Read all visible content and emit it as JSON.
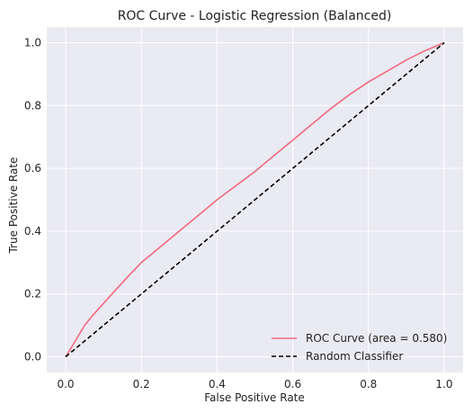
{
  "chart_data": {
    "type": "line",
    "title": "ROC Curve - Logistic Regression (Balanced)",
    "xlabel": "False Positive Rate",
    "ylabel": "True Positive Rate",
    "xlim": [
      -0.05,
      1.05
    ],
    "ylim": [
      -0.05,
      1.05
    ],
    "xticks": [
      "0.0",
      "0.2",
      "0.4",
      "0.6",
      "0.8",
      "1.0"
    ],
    "yticks": [
      "0.0",
      "0.2",
      "0.4",
      "0.6",
      "0.8",
      "1.0"
    ],
    "grid": true,
    "legend_position": "lower-right",
    "background_color": "#eaeaf2",
    "series": [
      {
        "name": "ROC Curve (area = 0.580)",
        "style": "solid",
        "color": "#f2697f",
        "x": [
          0.0,
          0.01,
          0.02,
          0.03,
          0.05,
          0.07,
          0.1,
          0.13,
          0.16,
          0.2,
          0.25,
          0.3,
          0.35,
          0.4,
          0.45,
          0.5,
          0.55,
          0.6,
          0.65,
          0.7,
          0.75,
          0.8,
          0.85,
          0.9,
          0.95,
          1.0
        ],
        "y": [
          0.0,
          0.02,
          0.04,
          0.06,
          0.1,
          0.13,
          0.17,
          0.21,
          0.25,
          0.3,
          0.35,
          0.4,
          0.45,
          0.5,
          0.545,
          0.59,
          0.64,
          0.69,
          0.74,
          0.79,
          0.835,
          0.875,
          0.91,
          0.945,
          0.975,
          1.0
        ]
      },
      {
        "name": "Random Classifier",
        "style": "dashed",
        "color": "#000000",
        "x": [
          0.0,
          1.0
        ],
        "y": [
          0.0,
          1.0
        ]
      }
    ]
  }
}
